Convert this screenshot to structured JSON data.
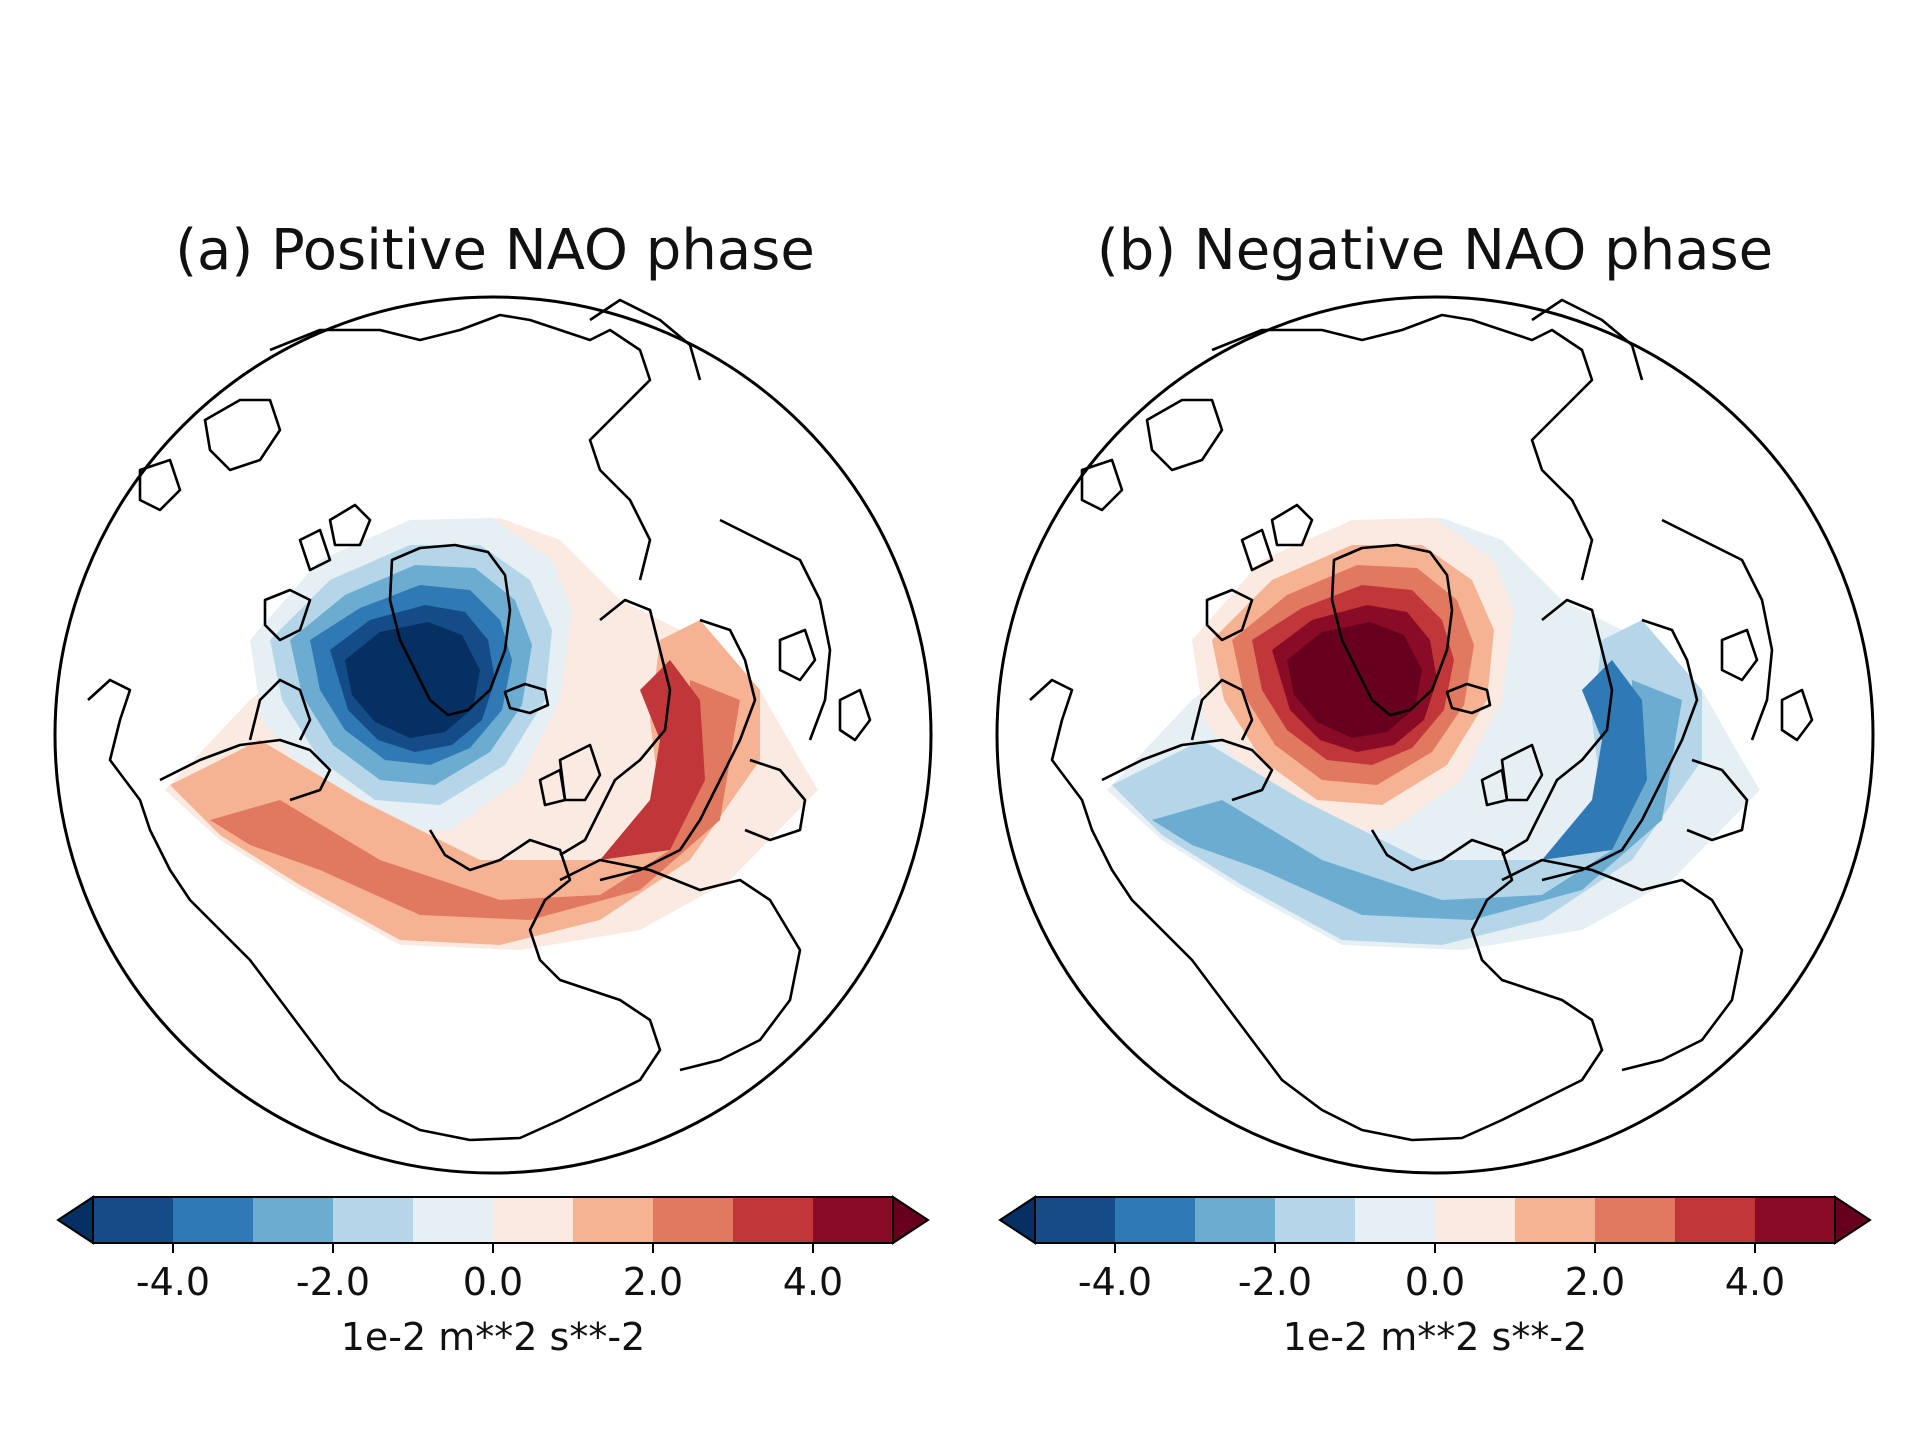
{
  "panels": [
    {
      "id": "a",
      "title": "(a) Positive NAO phase",
      "pattern": "positive",
      "colorbar": {
        "ticks": [
          "-4.0",
          "-2.0",
          "0.0",
          "2.0",
          "4.0"
        ],
        "tick_values": [
          -4,
          -2,
          0,
          2,
          4
        ],
        "range": [
          -5,
          5
        ],
        "label": "1e-2 m**2 s**-2"
      }
    },
    {
      "id": "b",
      "title": "(b) Negative NAO phase",
      "pattern": "negative",
      "colorbar": {
        "ticks": [
          "-4.0",
          "-2.0",
          "0.0",
          "2.0",
          "4.0"
        ],
        "tick_values": [
          -4,
          -2,
          0,
          2,
          4
        ],
        "range": [
          -5,
          5
        ],
        "label": "1e-2 m**2 s**-2"
      }
    }
  ],
  "colors": {
    "levels": [
      "#053061",
      "#134c87",
      "#2f79b5",
      "#6bacd0",
      "#b4d6e8",
      "#e5eff4",
      "#faeae1",
      "#f6b394",
      "#e17860",
      "#c13639",
      "#8a0b25",
      "#67001f"
    ],
    "coastline": "#000000"
  }
}
